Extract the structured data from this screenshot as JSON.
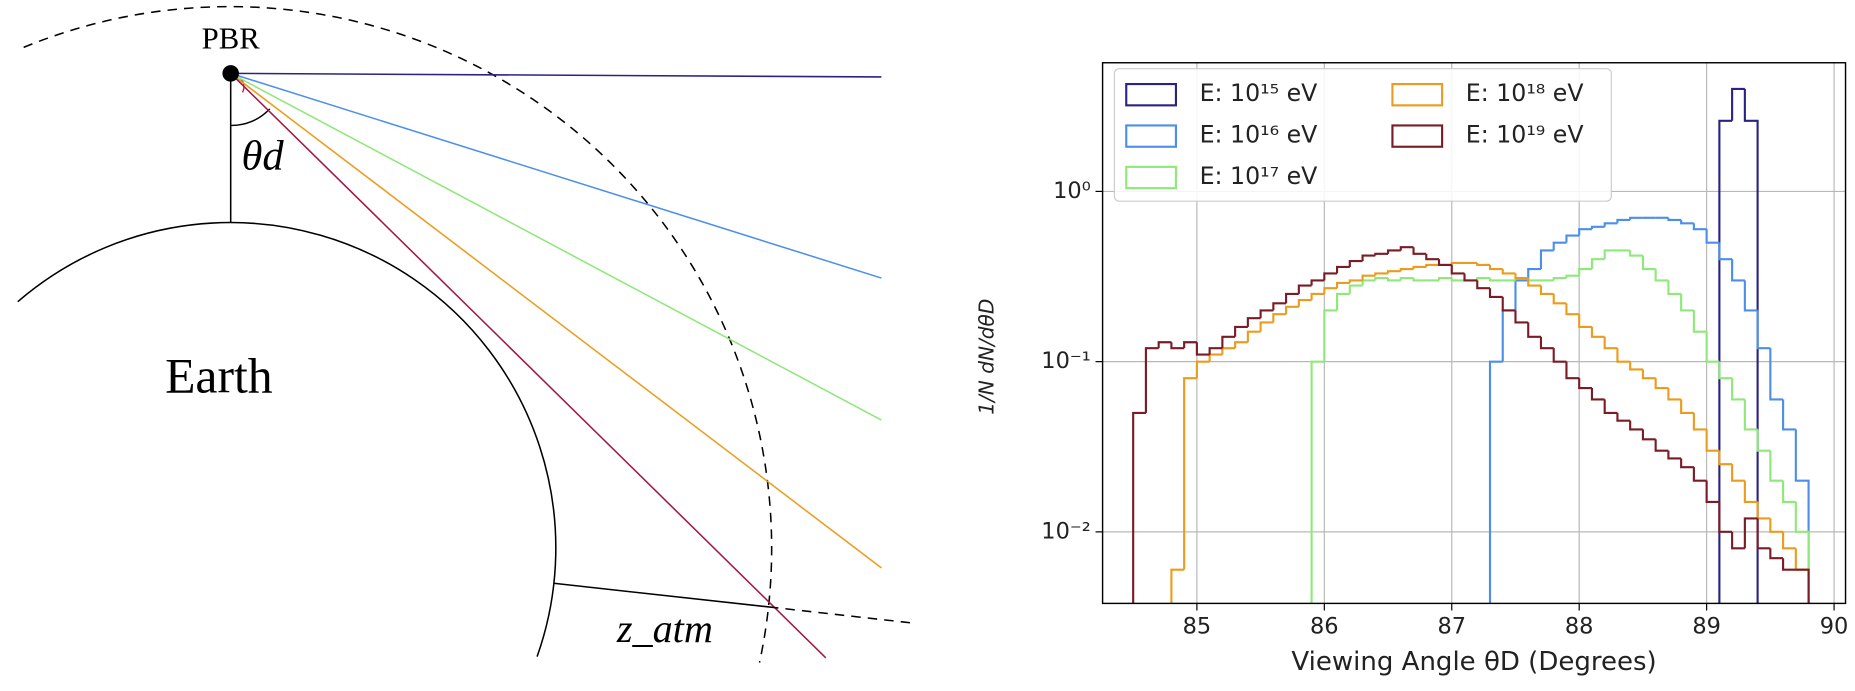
{
  "diagram": {
    "labels": {
      "source": "PBR",
      "planet": "Earth",
      "angle": "θd",
      "height": "z_atm"
    }
  },
  "chart_data": {
    "type": "histogram",
    "xlabel": "Viewing Angle θD (Degrees)",
    "ylabel": "1/N dN/dθD",
    "log_y": true,
    "grid": true,
    "legend": "upper left",
    "xlim": [
      84.26,
      90.09
    ],
    "xticks": [
      85,
      86,
      87,
      88,
      89,
      90
    ],
    "ylim": [
      0.0038,
      5.7
    ],
    "yticks": [
      {
        "value": 0.01,
        "label": "10⁻²"
      },
      {
        "value": 0.1,
        "label": "10⁻¹"
      },
      {
        "value": 1,
        "label": "10⁰"
      }
    ],
    "bins": [
      84.5,
      84.6,
      84.7,
      84.8,
      84.9,
      85.0,
      85.1,
      85.2,
      85.3,
      85.4,
      85.5,
      85.6,
      85.7,
      85.8,
      85.9,
      86.0,
      86.1,
      86.2,
      86.3,
      86.4,
      86.5,
      86.6,
      86.7,
      86.8,
      86.9,
      87.0,
      87.1,
      87.2,
      87.3,
      87.4,
      87.5,
      87.6,
      87.7,
      87.8,
      87.9,
      88.0,
      88.1,
      88.2,
      88.3,
      88.4,
      88.5,
      88.6,
      88.7,
      88.8,
      88.9,
      89.0,
      89.1,
      89.2,
      89.3,
      89.4,
      89.5,
      89.6,
      89.7,
      89.8
    ],
    "series": [
      {
        "name": "E: 10¹⁵ eV",
        "color": "#2b2383",
        "values": [
          null,
          null,
          null,
          null,
          null,
          null,
          null,
          null,
          null,
          null,
          null,
          null,
          null,
          null,
          null,
          null,
          null,
          null,
          null,
          null,
          null,
          null,
          null,
          null,
          null,
          null,
          null,
          null,
          null,
          null,
          null,
          null,
          null,
          null,
          null,
          null,
          null,
          null,
          null,
          null,
          null,
          null,
          null,
          null,
          null,
          null,
          2.6,
          4,
          2.6,
          null,
          null,
          null,
          null
        ]
      },
      {
        "name": "E: 10¹⁶ eV",
        "color": "#4c8fe8",
        "values": [
          null,
          null,
          null,
          null,
          null,
          null,
          null,
          null,
          null,
          null,
          null,
          null,
          null,
          null,
          null,
          null,
          null,
          null,
          null,
          null,
          null,
          null,
          null,
          null,
          null,
          null,
          null,
          null,
          0.1,
          0.2,
          0.3,
          0.35,
          0.45,
          0.5,
          0.55,
          0.6,
          0.62,
          0.65,
          0.68,
          0.7,
          0.7,
          0.7,
          0.68,
          0.65,
          0.6,
          0.5,
          0.4,
          0.3,
          0.2,
          0.12,
          0.06,
          0.04,
          0.02
        ]
      },
      {
        "name": "E: 10¹⁷ eV",
        "color": "#8ee87a",
        "values": [
          null,
          null,
          null,
          null,
          null,
          null,
          null,
          null,
          null,
          null,
          null,
          null,
          null,
          null,
          0.1,
          0.2,
          0.25,
          0.28,
          0.3,
          0.31,
          0.3,
          0.31,
          0.3,
          0.3,
          0.31,
          0.3,
          0.3,
          0.31,
          0.3,
          0.3,
          0.31,
          0.3,
          0.3,
          0.31,
          0.32,
          0.35,
          0.4,
          0.45,
          0.45,
          0.42,
          0.35,
          0.3,
          0.25,
          0.2,
          0.15,
          0.1,
          0.08,
          0.06,
          0.04,
          0.03,
          0.02,
          0.015,
          0.01
        ]
      },
      {
        "name": "E: 10¹⁸ eV",
        "color": "#eb9c1e",
        "values": [
          null,
          null,
          null,
          0.006,
          0.08,
          0.1,
          0.11,
          0.12,
          0.13,
          0.15,
          0.17,
          0.19,
          0.21,
          0.23,
          0.25,
          0.27,
          0.29,
          0.3,
          0.32,
          0.33,
          0.34,
          0.35,
          0.36,
          0.37,
          0.37,
          0.38,
          0.38,
          0.37,
          0.35,
          0.33,
          0.31,
          0.28,
          0.25,
          0.22,
          0.19,
          0.16,
          0.14,
          0.12,
          0.1,
          0.09,
          0.08,
          0.07,
          0.06,
          0.05,
          0.04,
          0.03,
          0.025,
          0.02,
          0.015,
          0.012,
          0.01,
          0.008,
          0.006
        ]
      },
      {
        "name": "E: 10¹⁹ eV",
        "color": "#7a1c26",
        "values": [
          0.05,
          0.12,
          0.13,
          0.12,
          0.13,
          0.11,
          0.12,
          0.14,
          0.16,
          0.18,
          0.2,
          0.22,
          0.25,
          0.28,
          0.3,
          0.33,
          0.36,
          0.39,
          0.42,
          0.43,
          0.45,
          0.47,
          0.43,
          0.4,
          0.37,
          0.33,
          0.3,
          0.27,
          0.24,
          0.2,
          0.17,
          0.14,
          0.12,
          0.1,
          0.08,
          0.07,
          0.06,
          0.05,
          0.045,
          0.04,
          0.035,
          0.03,
          0.027,
          0.024,
          0.02,
          0.015,
          0.01,
          0.008,
          0.012,
          0.008,
          0.007,
          0.006,
          0.006
        ]
      }
    ]
  }
}
